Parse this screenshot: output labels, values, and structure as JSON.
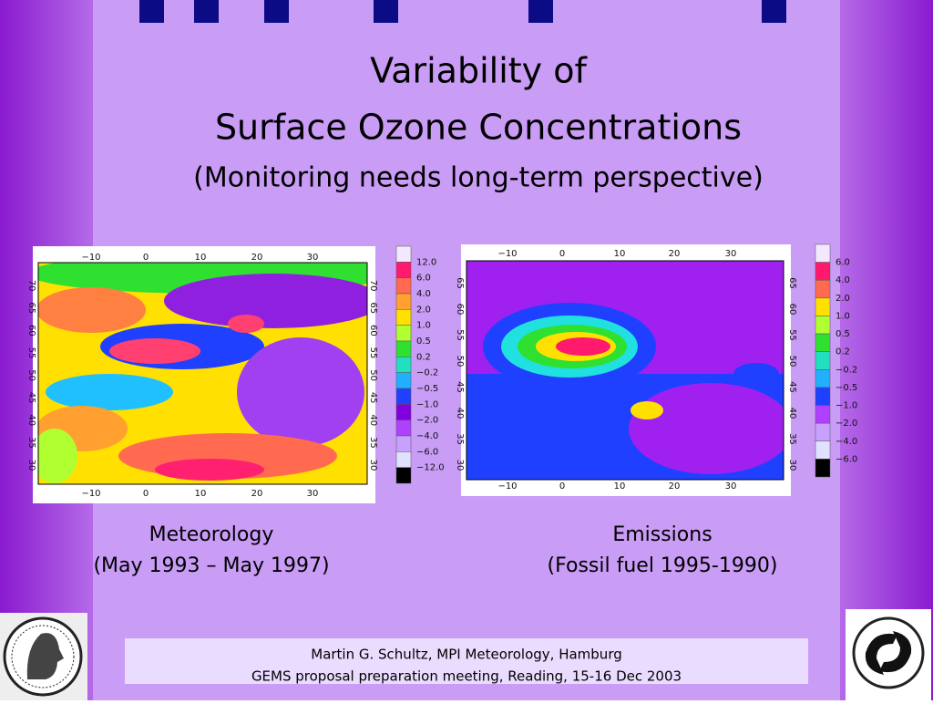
{
  "header": {
    "title_lines": [
      "Variability of",
      "Surface Ozone Concentrations"
    ],
    "subtitle": "(Monitoring needs long-term perspective)"
  },
  "maps": [
    {
      "lon_labels": [
        "−10",
        "0",
        "10",
        "20",
        "30"
      ],
      "lat_labels": [
        "30",
        "35",
        "40",
        "45",
        "50",
        "55",
        "60",
        "65",
        "70"
      ],
      "scale_labels": [
        "12.0",
        "6.0",
        "4.0",
        "2.0",
        "1.0",
        "0.5",
        "0.2",
        "−0.2",
        "−0.5",
        "−1.0",
        "−2.0",
        "−4.0",
        "−6.0",
        "−12.0"
      ],
      "caption": [
        "Meteorology",
        "(May 1993 – May 1997)"
      ]
    },
    {
      "lon_labels": [
        "−10",
        "0",
        "10",
        "20",
        "30"
      ],
      "lat_labels": [
        "30",
        "35",
        "40",
        "45",
        "50",
        "55",
        "60",
        "65"
      ],
      "scale_labels": [
        "6.0",
        "4.0",
        "2.0",
        "1.0",
        "0.5",
        "0.2",
        "−0.2",
        "−0.5",
        "−1.0",
        "−2.0",
        "−4.0",
        "−6.0"
      ],
      "caption": [
        "Emissions",
        "(Fossil fuel 1995-1990)"
      ]
    }
  ],
  "footer": [
    "Martin G. Schultz, MPI Meteorology, Hamburg",
    "GEMS proposal preparation meeting, Reading, 15-16 Dec 2003"
  ]
}
